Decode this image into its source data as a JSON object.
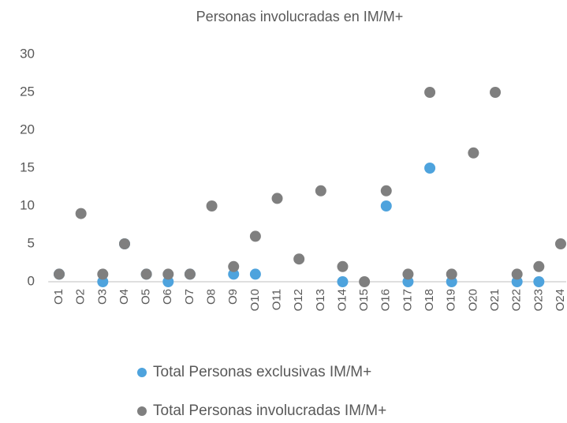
{
  "chart_data": {
    "type": "scatter",
    "title": "Personas involucradas en IM/M+",
    "categories": [
      "O1",
      "O2",
      "O3",
      "O4",
      "O5",
      "O6",
      "O7",
      "O8",
      "O9",
      "O10",
      "O11",
      "O12",
      "O13",
      "O14",
      "O15",
      "O16",
      "O17",
      "O18",
      "O19",
      "O20",
      "O21",
      "O22",
      "O23",
      "O24"
    ],
    "series": [
      {
        "name": "Total Personas exclusivas IM/M+",
        "color": "#4ea3dd",
        "values": [
          1,
          null,
          0,
          5,
          1,
          0,
          1,
          null,
          1,
          1,
          null,
          null,
          null,
          0,
          null,
          10,
          0,
          15,
          0,
          null,
          null,
          0,
          0,
          null
        ]
      },
      {
        "name": "Total Personas involucradas IM/M+",
        "color": "#7f7f7f",
        "values": [
          1,
          9,
          1,
          5,
          1,
          1,
          1,
          10,
          2,
          6,
          11,
          3,
          12,
          2,
          0,
          12,
          1,
          25,
          1,
          17,
          25,
          1,
          2,
          5
        ]
      }
    ],
    "ylim": [
      0,
      30
    ],
    "yticks": [
      0,
      5,
      10,
      15,
      20,
      25,
      30
    ],
    "grid": false
  }
}
